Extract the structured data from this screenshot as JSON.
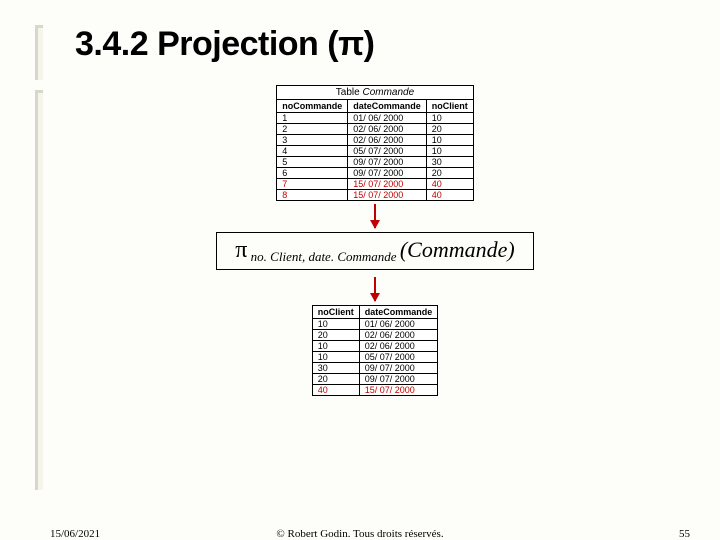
{
  "heading": "3.4.2   Projection (π)",
  "table1": {
    "caption_label": "Table ",
    "caption_name": "Commande",
    "columns": [
      "noCommande",
      "dateCommande",
      "noClient"
    ],
    "rows": [
      {
        "cells": [
          "1",
          "01/ 06/ 2000",
          "10"
        ],
        "red": false
      },
      {
        "cells": [
          "2",
          "02/ 06/ 2000",
          "20"
        ],
        "red": false
      },
      {
        "cells": [
          "3",
          "02/ 06/ 2000",
          "10"
        ],
        "red": false
      },
      {
        "cells": [
          "4",
          "05/ 07/ 2000",
          "10"
        ],
        "red": false
      },
      {
        "cells": [
          "5",
          "09/ 07/ 2000",
          "30"
        ],
        "red": false
      },
      {
        "cells": [
          "6",
          "09/ 07/ 2000",
          "20"
        ],
        "red": false
      },
      {
        "cells": [
          "7",
          "15/ 07/ 2000",
          "40"
        ],
        "red": true
      },
      {
        "cells": [
          "8",
          "15/ 07/ 2000",
          "40"
        ],
        "red": true
      }
    ]
  },
  "expression": {
    "pi": "π",
    "subscript": " no. Client, date. Commande ",
    "main": "(Commande)"
  },
  "table2": {
    "columns": [
      "noClient",
      "dateCommande"
    ],
    "rows": [
      {
        "cells": [
          "10",
          "01/ 06/ 2000"
        ],
        "red": false
      },
      {
        "cells": [
          "20",
          "02/ 06/ 2000"
        ],
        "red": false
      },
      {
        "cells": [
          "10",
          "02/ 06/ 2000"
        ],
        "red": false
      },
      {
        "cells": [
          "10",
          "05/ 07/ 2000"
        ],
        "red": false
      },
      {
        "cells": [
          "30",
          "09/ 07/ 2000"
        ],
        "red": false
      },
      {
        "cells": [
          "20",
          "09/ 07/ 2000"
        ],
        "red": false
      },
      {
        "cells": [
          "40",
          "15/ 07/ 2000"
        ],
        "red": true
      }
    ]
  },
  "footer": {
    "date": "15/06/2021",
    "copyright": "© Robert Godin. Tous droits réservés.",
    "page": "55"
  }
}
